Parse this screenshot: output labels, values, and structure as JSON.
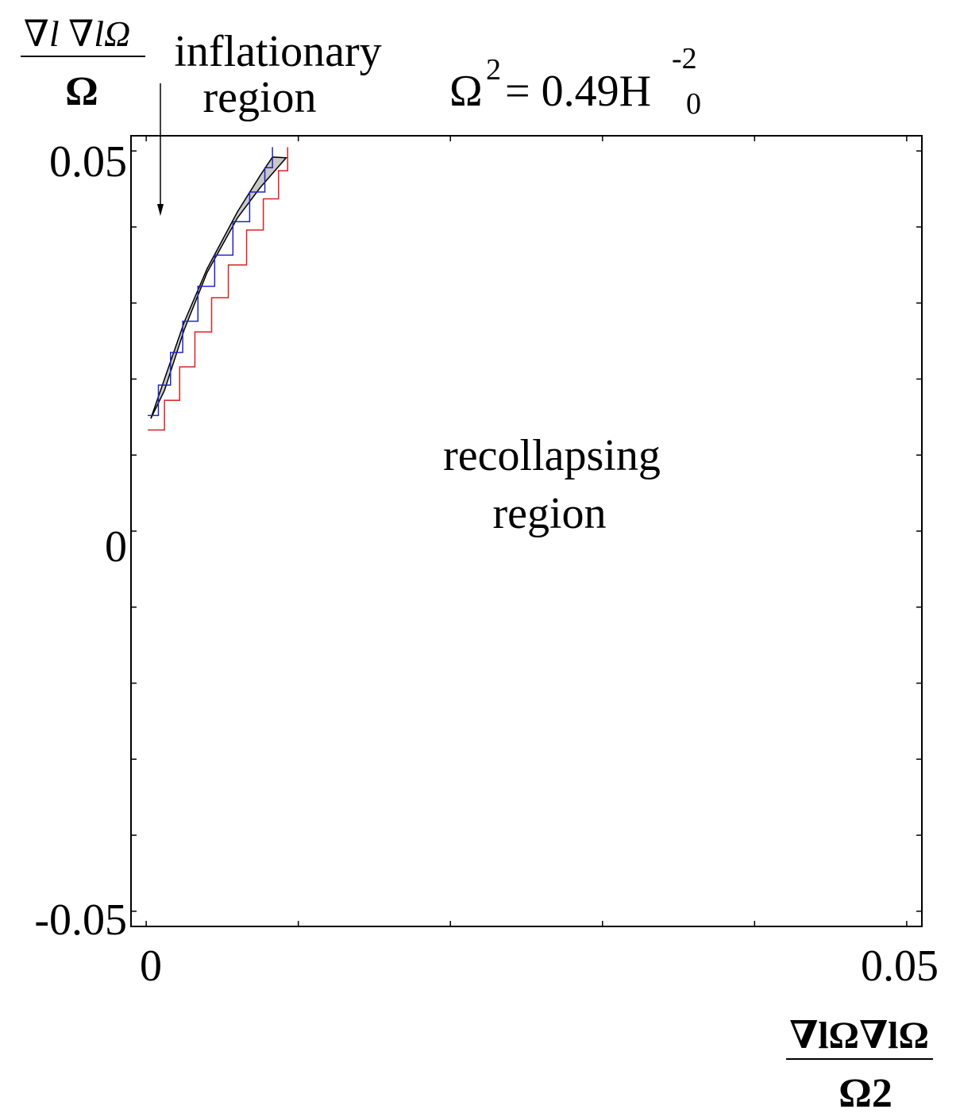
{
  "chart_data": {
    "type": "line",
    "title": "Ω² = 0.49H₀⁻²",
    "title_parts": {
      "base": "Ω",
      "base_sup": "2",
      "eq": "= 0.49H",
      "sub": "0",
      "sup": "-2"
    },
    "ylabel": {
      "numerator": "∇l ∇lΩ",
      "denominator": "Ω"
    },
    "xlabel": {
      "numerator": "∇lΩ∇lΩ",
      "denominator": "Ω2"
    },
    "xlim": [
      -0.001,
      0.051
    ],
    "ylim": [
      -0.052,
      0.052
    ],
    "x_tick_labels": [
      "0",
      "0.05"
    ],
    "y_tick_labels": [
      "0.05",
      "0",
      "-0.05"
    ],
    "annotations": [
      {
        "text_lines": [
          "inflationary",
          "region"
        ],
        "arrow": true
      },
      {
        "text_lines": [
          "recollapsing",
          "region"
        ],
        "arrow": false
      }
    ],
    "band": {
      "name": "",
      "color": "#c8c8c8",
      "upper": {
        "x": [
          0.0003,
          0.0012,
          0.0025,
          0.004,
          0.006,
          0.0075,
          0.0083
        ],
        "y": [
          0.0148,
          0.02,
          0.0275,
          0.0345,
          0.042,
          0.0468,
          0.0492
        ]
      },
      "lower": {
        "x": [
          0.0003,
          0.0012,
          0.0025,
          0.004,
          0.006,
          0.0075,
          0.0092
        ],
        "y": [
          0.0148,
          0.0185,
          0.0265,
          0.034,
          0.0412,
          0.0452,
          0.0491
        ]
      }
    },
    "series": [
      {
        "color": "#2222cc",
        "x": [
          0.0001,
          0.0008,
          0.0016,
          0.0024,
          0.0034,
          0.0045,
          0.0057,
          0.0068,
          0.0078,
          0.0083,
          0.0083
        ],
        "y": [
          0.0152,
          0.0192,
          0.0235,
          0.0276,
          0.0322,
          0.0363,
          0.0407,
          0.0446,
          0.0478,
          0.0496,
          0.0505
        ]
      },
      {
        "color": "#dd2222",
        "x": [
          0.0001,
          0.0012,
          0.0022,
          0.0032,
          0.0043,
          0.0054,
          0.0066,
          0.0077,
          0.0087,
          0.0093,
          0.0093
        ],
        "y": [
          0.0133,
          0.0172,
          0.0216,
          0.0262,
          0.0307,
          0.035,
          0.0396,
          0.0437,
          0.0474,
          0.0494,
          0.0505
        ]
      }
    ]
  }
}
